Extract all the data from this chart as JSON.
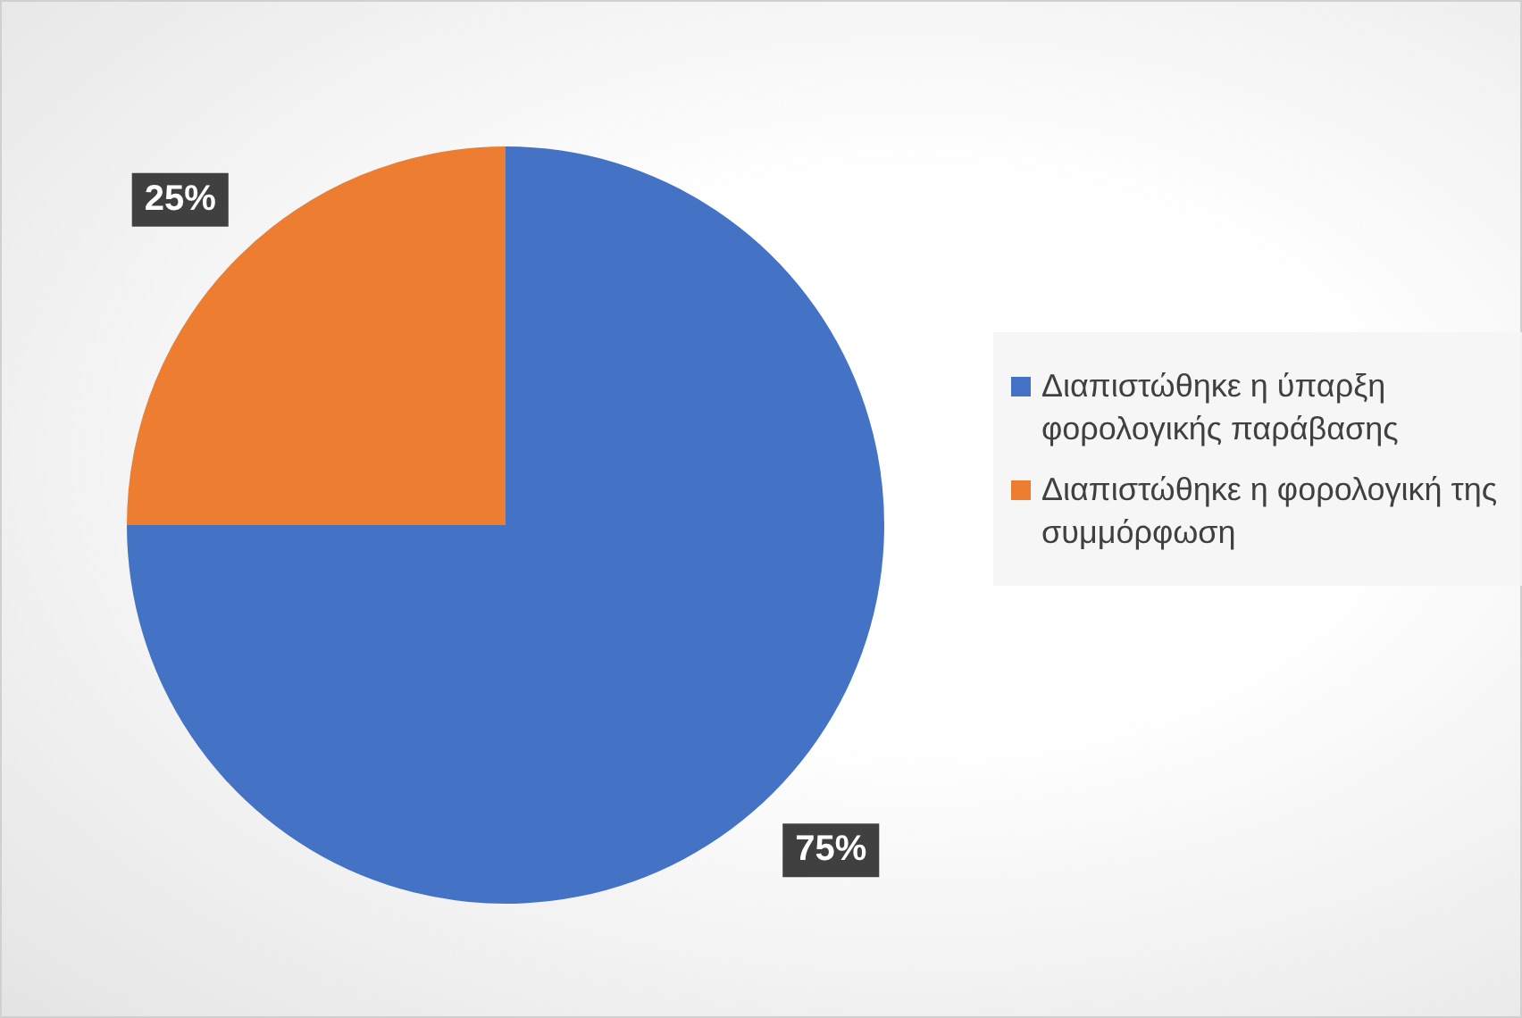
{
  "chart_data": {
    "type": "pie",
    "categories": [
      "Διαπιστώθηκε η ύπαρξη φορολογικής παράβασης",
      "Διαπιστώθηκε η φορολογική της συμμόρφωση"
    ],
    "values": [
      75,
      25
    ],
    "colors": [
      "#4472c4",
      "#ed7d31"
    ],
    "value_labels": [
      "75%",
      "25%"
    ],
    "legend": "right"
  }
}
